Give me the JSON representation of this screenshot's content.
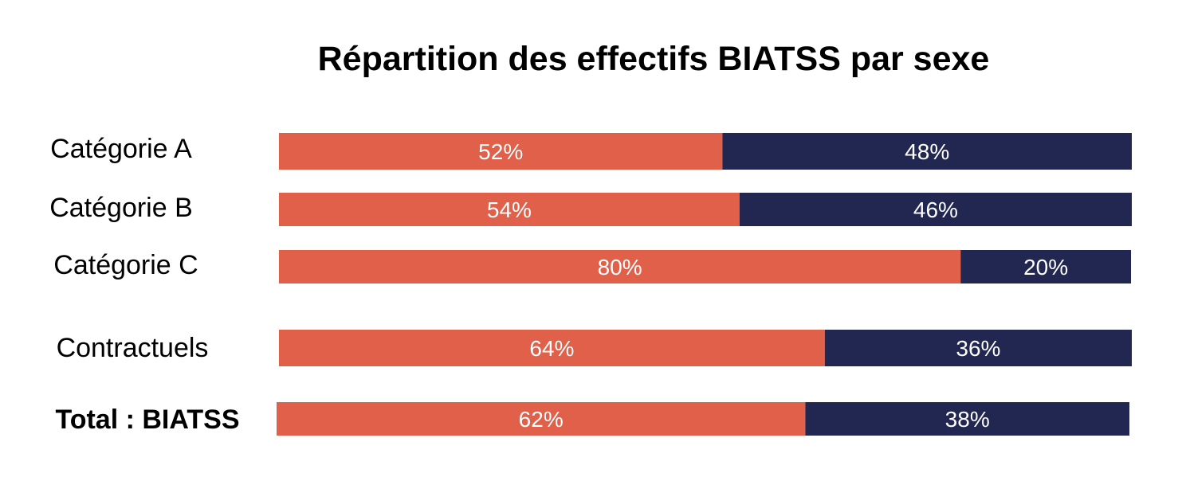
{
  "chart_data": {
    "type": "bar",
    "orientation": "horizontal",
    "stacked": "percent",
    "title": "Répartition des effectifs BIATSS par sexe",
    "categories": [
      "Catégorie A",
      "Catégorie B",
      "Catégorie C",
      "Contractuels",
      "Total : BIATSS"
    ],
    "emphasized_category": "Total : BIATSS",
    "series": [
      {
        "values": [
          52,
          54,
          80,
          64,
          62
        ],
        "labels": [
          "52%",
          "54%",
          "80%",
          "64%",
          "62%"
        ],
        "color": "#e0604a"
      },
      {
        "values": [
          48,
          46,
          20,
          36,
          38
        ],
        "labels": [
          "48%",
          "46%",
          "20%",
          "36%",
          "38%"
        ],
        "color": "#222752"
      }
    ],
    "xlim": [
      0,
      100
    ],
    "unit": "%",
    "legend": "none",
    "grid": false,
    "axes_visible": false
  }
}
